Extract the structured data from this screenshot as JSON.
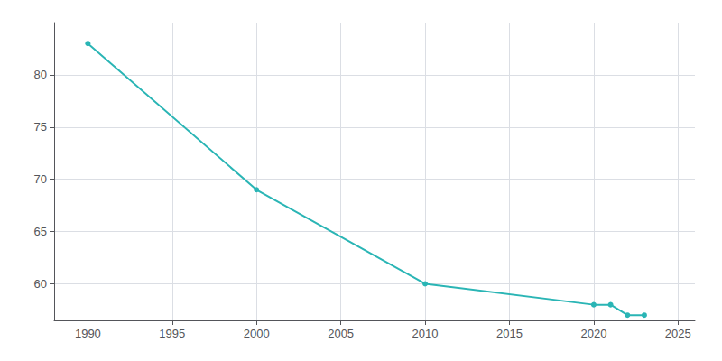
{
  "chart_data": {
    "type": "line",
    "x": [
      1990,
      2000,
      2010,
      2020,
      2021,
      2022,
      2023
    ],
    "values": [
      83,
      69,
      60,
      58,
      58,
      57,
      57
    ],
    "color": "#2ab5b5",
    "marker": "circle",
    "xlim": [
      1988,
      2026
    ],
    "ylim": [
      56.5,
      85
    ],
    "xticks": [
      1990,
      1995,
      2000,
      2005,
      2010,
      2015,
      2020,
      2025
    ],
    "yticks": [
      60,
      65,
      70,
      75,
      80
    ],
    "grid": true
  }
}
